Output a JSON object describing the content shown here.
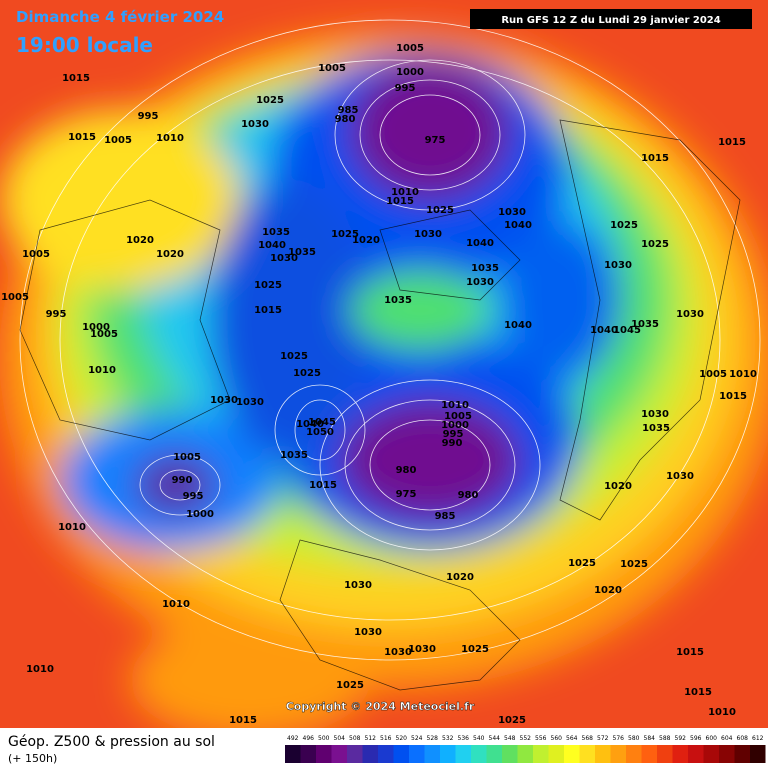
{
  "header": {
    "date": "Dimanche 4 février 2024",
    "time": "19:00 locale",
    "run": "Run GFS 12 Z du Lundi 29 janvier 2024"
  },
  "copyright": "Copyright © 2024 Meteociel.fr",
  "legend": {
    "title": "Géop. Z500 & pression au sol",
    "subtitle": "(+ 150h)",
    "values": [
      492,
      496,
      500,
      504,
      508,
      512,
      516,
      520,
      524,
      528,
      532,
      536,
      540,
      544,
      548,
      552,
      556,
      560,
      564,
      568,
      572,
      576,
      580,
      584,
      588,
      592,
      596,
      600,
      604,
      608,
      612
    ],
    "colors": [
      "#1a0030",
      "#3a0050",
      "#600070",
      "#7a1090",
      "#5a2aa0",
      "#2a2ab0",
      "#1a3ad0",
      "#0050f0",
      "#0a70ff",
      "#1090ff",
      "#10b0ff",
      "#20d0f0",
      "#30e0c0",
      "#40e090",
      "#60e060",
      "#90e840",
      "#c0f030",
      "#e0f020",
      "#ffff20",
      "#ffe020",
      "#ffc010",
      "#ffa010",
      "#ff8010",
      "#ff6010",
      "#f04010",
      "#e02010",
      "#c81010",
      "#a80808",
      "#880404",
      "#600000",
      "#300000"
    ]
  },
  "isobar_labels": [
    "1005",
    "1005",
    "1000",
    "995",
    "985",
    "980",
    "1015",
    "1025",
    "995",
    "1010",
    "1005",
    "1015",
    "1030",
    "975",
    "1010",
    "1015",
    "1025",
    "1030",
    "1040",
    "1015",
    "1015",
    "1035",
    "1040",
    "1025",
    "1020",
    "1030",
    "1040",
    "1035",
    "1030",
    "1025",
    "1025",
    "1020",
    "1020",
    "1005",
    "1035",
    "1030",
    "1030",
    "1025",
    "1005",
    "1035",
    "995",
    "1015",
    "1040",
    "1040",
    "1045",
    "1035",
    "1030",
    "1000",
    "1005",
    "1010",
    "1025",
    "1025",
    "1005",
    "1010",
    "1015",
    "1030",
    "1030",
    "1010",
    "1005",
    "1000",
    "995",
    "990",
    "1030",
    "1035",
    "1040",
    "1045",
    "1050",
    "1035",
    "1005",
    "990",
    "995",
    "1015",
    "980",
    "975",
    "980",
    "985",
    "1000",
    "1020",
    "1030",
    "1010",
    "1020",
    "1025",
    "1025",
    "1020",
    "1030",
    "1010",
    "1030",
    "1030",
    "1030",
    "1025",
    "1010",
    "1015",
    "1025",
    "1015",
    "1010",
    "1015",
    "1025"
  ]
}
